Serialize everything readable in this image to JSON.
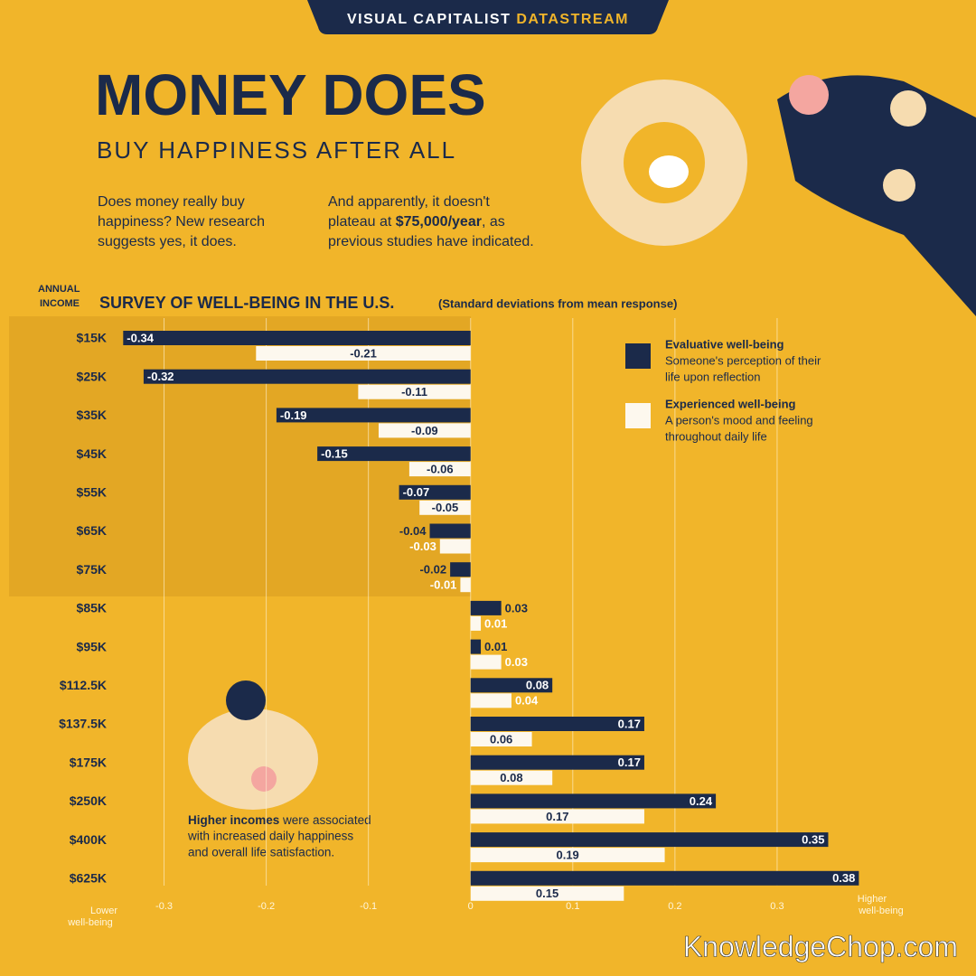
{
  "header": {
    "brand": "VISUAL CAPITALIST",
    "brand_accent": "DATASTREAM",
    "title": "MONEY DOES",
    "subtitle": "BUY HAPPINESS AFTER ALL"
  },
  "intro": {
    "left": [
      "Does money really buy",
      "happiness? New research",
      "suggests yes, it does."
    ],
    "right_line1": "And apparently, it doesn't",
    "right_line2_pre": "plateau at ",
    "right_line2_bold": "$75,000/year",
    "right_line2_post": ", as",
    "right_line3": "previous studies have indicated."
  },
  "annotation": {
    "bold": "Higher incomes",
    "line1_rest": " were associated",
    "line2": "with increased daily happiness",
    "line3": "and overall life satisfaction."
  },
  "watermark": "KnowledgeChop.com",
  "chart_data": {
    "type": "bar",
    "orientation": "horizontal",
    "title": "SURVEY OF WELL-BEING IN THE U.S.",
    "subtitle": "(Standard deviations from mean response)",
    "y_label": [
      "ANNUAL",
      "INCOME"
    ],
    "x_label_low": [
      "Lower",
      "well-being"
    ],
    "x_label_high": [
      "Higher",
      "well-being"
    ],
    "categories": [
      "$15K",
      "$25K",
      "$35K",
      "$45K",
      "$55K",
      "$65K",
      "$75K",
      "$85K",
      "$95K",
      "$112.5K",
      "$137.5K",
      "$175K",
      "$250K",
      "$400K",
      "$625K"
    ],
    "series": [
      {
        "name": "Evaluative well-being",
        "description": [
          "Someone's perception of their",
          "life upon reflection"
        ],
        "color": "#1b2a4a",
        "values": [
          -0.34,
          -0.32,
          -0.19,
          -0.15,
          -0.07,
          -0.04,
          -0.02,
          0.03,
          0.01,
          0.08,
          0.17,
          0.17,
          0.24,
          0.35,
          0.38
        ]
      },
      {
        "name": "Experienced well-being",
        "description": [
          "A person's mood and feeling",
          "throughout daily life"
        ],
        "color": "#fdf8ee",
        "values": [
          -0.21,
          -0.11,
          -0.09,
          -0.06,
          -0.05,
          -0.03,
          -0.01,
          0.01,
          0.03,
          0.04,
          0.06,
          0.08,
          0.17,
          0.19,
          0.15
        ]
      }
    ],
    "xlim": [
      -0.35,
      0.4
    ],
    "xticks": [
      -0.3,
      -0.2,
      -0.1,
      0,
      0.1,
      0.2,
      0.3
    ],
    "grid": true
  }
}
